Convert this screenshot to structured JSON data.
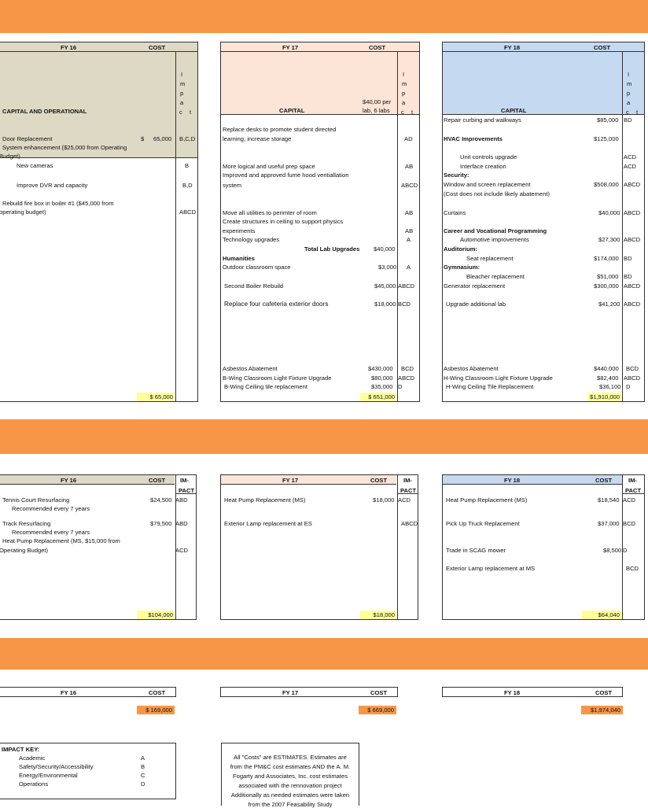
{
  "colors": {
    "band": "#F79646",
    "fy16": "#DDD9C4",
    "fy17": "#FCE4D6",
    "fy18": "#C5D9F1",
    "total_highlight": "#FFFF99"
  },
  "capital": {
    "fy16": {
      "year": "FY 16",
      "cost": "COST",
      "impact_letters": [
        "I",
        "m",
        "p",
        "a",
        "c",
        "t"
      ],
      "section": "CAPITAL AND OPERATIONAL",
      "items": [
        {
          "text": "Door Replacement",
          "cost_sym": "$",
          "cost": "65,000",
          "impact": "B,C,D"
        },
        {
          "text": "System enhancement ($25,000 from Operating",
          "cost": "",
          "impact": ""
        },
        {
          "text": "Budget)",
          "cost": "",
          "impact": ""
        },
        {
          "text": "New cameras",
          "cost": "",
          "impact": "B"
        },
        {
          "text": "Improve DVR and capacity",
          "cost": "",
          "impact": "B,D"
        },
        {
          "text": "Rebuild fire box in boiler #1 ($45,000 from",
          "cost": "",
          "impact": ""
        },
        {
          "text": "operating budget)",
          "cost": "",
          "impact": "ABCD"
        }
      ],
      "total": "$   65,000"
    },
    "fy17": {
      "year": "FY 17",
      "cost": "COST",
      "impact_letters": [
        "I",
        "m",
        "p",
        "a",
        "c",
        "t"
      ],
      "section": "CAPITAL",
      "cost_note1": "$40,00 per",
      "cost_note2": "lab, 6 labs",
      "items": [
        {
          "text": "Replace desks to promote student directed",
          "cost": "",
          "impact": ""
        },
        {
          "text": "learning; increase storage",
          "cost": "",
          "impact": "AD"
        },
        {
          "text": "More logical and useful prep space",
          "cost": "",
          "impact": "AB"
        },
        {
          "text": "Improved and approved fume hood ventiallation",
          "cost": "",
          "impact": ""
        },
        {
          "text": "system",
          "cost": "",
          "impact": "ABCD"
        },
        {
          "text": "Move all utilities to perimter of room",
          "cost": "",
          "impact": "AB"
        },
        {
          "text": "Create structures in ceiling to support physics",
          "cost": "",
          "impact": ""
        },
        {
          "text": "experiments",
          "cost": "",
          "impact": "AB"
        },
        {
          "text": "Technology upgrades",
          "cost": "",
          "impact": "A"
        },
        {
          "text": "Total Lab Upgrades",
          "cost": "$40,000",
          "impact": ""
        },
        {
          "text": "Humanities",
          "cost": "",
          "impact": ""
        },
        {
          "text": "Outdoor classroom space",
          "cost": "$3,000",
          "impact": "A"
        },
        {
          "text": "Second Boiler Rebuild",
          "cost": "$45,000",
          "impact": "ABCD"
        },
        {
          "text": "Replace four cafeteria exterior doors",
          "cost": "$18,000",
          "impact": "BCD"
        },
        {
          "text": "Asbestos Abatement",
          "cost": "$430,000",
          "impact": "BCD"
        },
        {
          "text": "B-Wing Classroom Light Fixture Upgrade",
          "cost": "$80,000",
          "impact": "ABCD"
        },
        {
          "text": "B-Wing Ceiling tile replacement",
          "cost": "$35,000",
          "impact": "D"
        }
      ],
      "total": "$  651,000"
    },
    "fy18": {
      "year": "FY 18",
      "cost": "COST",
      "impact_letters": [
        "I",
        "m",
        "p",
        "a",
        "c",
        "t"
      ],
      "section": "CAPITAL",
      "items": [
        {
          "text": "Repair curbing and walkways",
          "cost": "$85,000",
          "impact": "BD"
        },
        {
          "text": "HVAC Improvements",
          "cost": "$125,000",
          "impact": ""
        },
        {
          "text": "Unit controls upgrade",
          "cost": "",
          "impact": "ACD"
        },
        {
          "text": "Interface creation",
          "cost": "",
          "impact": "ACD"
        },
        {
          "text": "Security:",
          "cost": "",
          "impact": ""
        },
        {
          "text": "Window and screen replacement",
          "cost": "$508,000",
          "impact": "ABCD"
        },
        {
          "text": "(Cost does not include likely abatement)",
          "cost": "",
          "impact": ""
        },
        {
          "text": "Curtains",
          "cost": "$40,000",
          "impact": "ABCD"
        },
        {
          "text": "Career and Vocational Programming",
          "cost": "",
          "impact": ""
        },
        {
          "text": "Automotive improvements",
          "cost": "$27,300",
          "impact": "ABCD"
        },
        {
          "text": "Auditorium:",
          "cost": "",
          "impact": ""
        },
        {
          "text": "Seat replacement",
          "cost": "$174,000",
          "impact": "BD"
        },
        {
          "text": "Gymnasium:",
          "cost": "",
          "impact": ""
        },
        {
          "text": "Bleacher replacement",
          "cost": "$51,000",
          "impact": "BD"
        },
        {
          "text": "Generator replacement",
          "cost": "$300,000",
          "impact": "ABCD"
        },
        {
          "text": "Upgrade additional lab",
          "cost": "$41,200",
          "impact": "ABCD"
        },
        {
          "text": "Asbestos Abatement",
          "cost": "$440,000",
          "impact": "BCD"
        },
        {
          "text": "H-Wing Classroom Light Fixture Upgrade",
          "cost": "$82,400",
          "impact": "ABCD"
        },
        {
          "text": "H-Wing Ceiling Tile Replacement",
          "cost": "$36,100",
          "impact": "D"
        }
      ],
      "total": "$1,910,000"
    }
  },
  "operational": {
    "fy16": {
      "year": "FY 16",
      "cost": "COST",
      "impact1": "IM-",
      "impact2": "PACT",
      "items": [
        {
          "text": "Tennis Court Resurfacing",
          "cost": "$24,500",
          "impact": "ABD"
        },
        {
          "text": "Recommended every 7 years",
          "cost": "",
          "impact": ""
        },
        {
          "text": "Track Resurfacing",
          "cost": "$79,500",
          "impact": "ABD"
        },
        {
          "text": "Recommended every 7 years",
          "cost": "",
          "impact": ""
        },
        {
          "text": "Heat Pump Replacement (MS, $15,000 from",
          "cost": "",
          "impact": ""
        },
        {
          "text": "Operating Budget)",
          "cost": "",
          "impact": "ACD"
        }
      ],
      "total": "$104,000"
    },
    "fy17": {
      "year": "FY 17",
      "cost": "COST",
      "impact1": "IM-",
      "impact2": "PACT",
      "items": [
        {
          "text": "Heat Pump Replacement (MS)",
          "cost": "$18,000",
          "impact": "ACD"
        },
        {
          "text": "Exterior Lamp replacement at ES",
          "cost": "",
          "impact": "ABCD"
        }
      ],
      "total": "$18,000"
    },
    "fy18": {
      "year": "FY 18",
      "cost": "COST",
      "impact1": "IM-",
      "impact2": "PACT",
      "items": [
        {
          "text": "Heat Pump Replacement (MS)",
          "cost": "$18,540",
          "impact": "ACD"
        },
        {
          "text": "Pick Up Truck Replacement",
          "cost": "$37,000",
          "impact": "BCD"
        },
        {
          "text": "Trade in SCAG mower",
          "cost": "$8,500",
          "impact": "D"
        },
        {
          "text": "Exterior Lamp replacement at MS",
          "cost": "",
          "impact": "BCD"
        }
      ],
      "total": "$64,040"
    }
  },
  "grand": {
    "fy16": {
      "year": "FY 16",
      "cost": "COST",
      "total": "$  169,000"
    },
    "fy17": {
      "year": "FY 17",
      "cost": "COST",
      "total": "$  669,000"
    },
    "fy18": {
      "year": "FY 18",
      "cost": "COST",
      "total": "$1,974,040"
    }
  },
  "impact_key": {
    "title": "IMPACT KEY:",
    "items": [
      {
        "label": "Academic",
        "code": "A"
      },
      {
        "label": "Safety/Security/Accessibility",
        "code": "B"
      },
      {
        "label": "Energy/Environmental",
        "code": "C"
      },
      {
        "label": "Operations",
        "code": "D"
      }
    ]
  },
  "note": {
    "lines": [
      "All \"Costs\" are ESTIMATES.  Estimates are",
      "from the PM&C cost estimates AND the A. M.",
      "Fogarty and Associates, Inc. cost estimates",
      "associated with the rennovation project",
      "Additionally as needed estimates were taken",
      "from the 2007 Feasability Study"
    ]
  }
}
